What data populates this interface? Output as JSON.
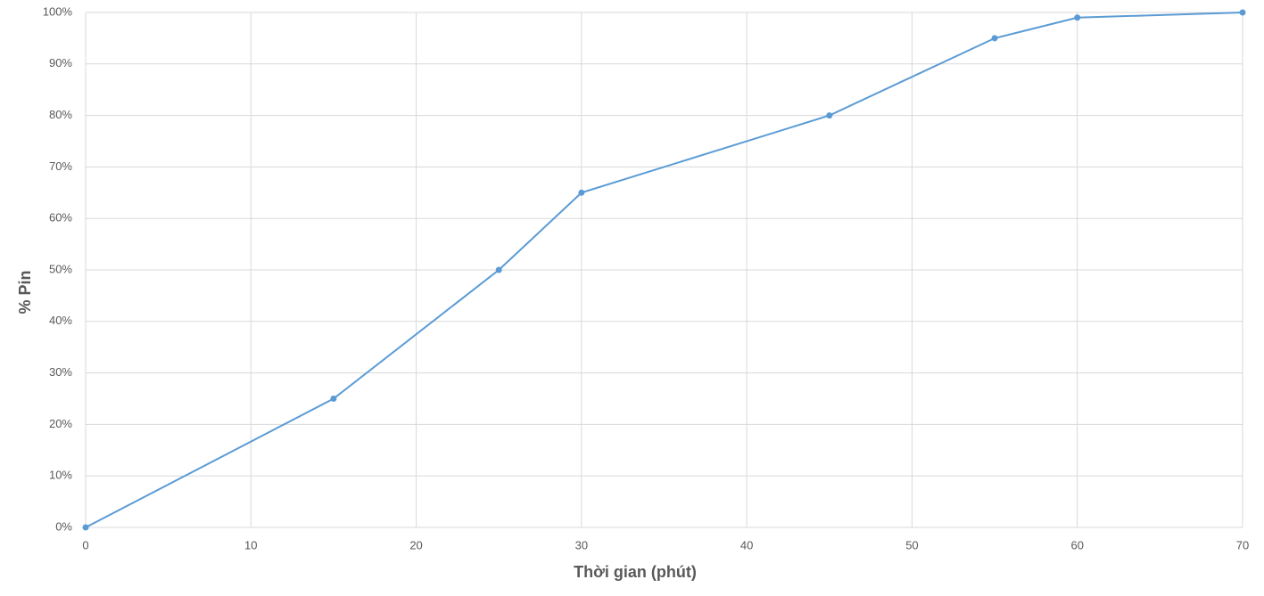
{
  "chart_data": {
    "type": "line",
    "x_label": "Thời gian (phút)",
    "y_label": "% Pin",
    "x": [
      0,
      15,
      25,
      30,
      45,
      55,
      60,
      70
    ],
    "values": [
      0,
      25,
      50,
      65,
      80,
      95,
      99,
      100
    ],
    "color": "#5b9bd5",
    "xlim": [
      0,
      70
    ],
    "xticks": [
      0,
      10,
      20,
      30,
      40,
      50,
      60,
      70
    ],
    "ylim": [
      0,
      100
    ],
    "yticks": [
      {
        "value": 0,
        "label": "0%"
      },
      {
        "value": 10,
        "label": "10%"
      },
      {
        "value": 20,
        "label": "20%"
      },
      {
        "value": 30,
        "label": "30%"
      },
      {
        "value": 40,
        "label": "40%"
      },
      {
        "value": 50,
        "label": "50%"
      },
      {
        "value": 60,
        "label": "60%"
      },
      {
        "value": 70,
        "label": "70%"
      },
      {
        "value": 80,
        "label": "80%"
      },
      {
        "value": 90,
        "label": "90%"
      },
      {
        "value": 100,
        "label": "100%"
      }
    ],
    "grid": true,
    "markers": true
  }
}
